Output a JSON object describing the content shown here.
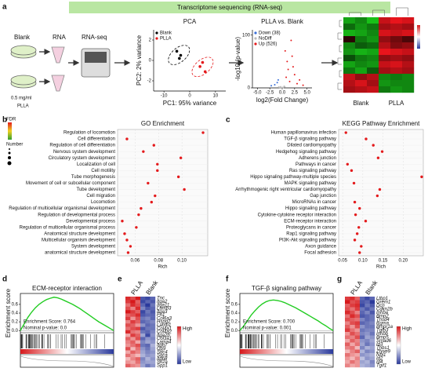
{
  "header": {
    "title": "Transcriptome sequencing (RNA-seq)"
  },
  "panel_letters": [
    "a",
    "b",
    "c",
    "d",
    "e",
    "f",
    "g"
  ],
  "workflow": {
    "labels": [
      "Blank",
      "RNA",
      "RNA-seq",
      "0.5 mg/ml",
      "PLLA"
    ]
  },
  "chart_data": [
    {
      "type": "scatter",
      "title": "PCA",
      "xlabel": "PC1: 95% variance",
      "ylabel": "PC2: 2% variance",
      "xlim": [
        -14,
        14
      ],
      "ylim": [
        -3,
        3
      ],
      "xticks": [
        -10,
        0,
        10
      ],
      "yticks": [
        -2,
        0,
        2
      ],
      "legend": "upper left",
      "ellipse": true,
      "series": [
        {
          "name": "Blank",
          "color": "#000000",
          "x": [
            -5,
            -3.5,
            -4
          ],
          "values": [
            0.9,
            0.5,
            0.2
          ]
        },
        {
          "name": "PLLA",
          "color": "#e41a1c",
          "x": [
            4,
            6,
            5
          ],
          "values": [
            -0.6,
            -1.1,
            -0.2
          ]
        }
      ]
    },
    {
      "type": "scatter",
      "title": "PLLA vs. Blank",
      "xlabel": "log2(Fold Change)",
      "ylabel": "-log10 (p-value)",
      "xlim": [
        -6,
        6
      ],
      "ylim": [
        0,
        110
      ],
      "xticks": [
        {
          "value": -5,
          "label": "-5.0"
        },
        {
          "value": -2.5,
          "label": "-2.5"
        },
        {
          "value": 0,
          "label": "0.0"
        },
        {
          "value": 2.5,
          "label": "2.5"
        },
        {
          "value": 5,
          "label": "5.0"
        }
      ],
      "yticks": [
        0,
        100
      ],
      "legend": "upper left",
      "series": [
        {
          "name": "Down (38)",
          "color": "#3a6fd8",
          "x": [
            -1.0,
            -1.5,
            -2.2,
            -0.8
          ],
          "values": [
            10,
            6,
            4,
            15
          ]
        },
        {
          "name": "NoDiff",
          "color": "#bbbbbb",
          "x": [
            -0.5,
            -0.3,
            0.2,
            0.4,
            -0.7,
            0.1,
            0.5,
            -0.2
          ],
          "values": [
            1,
            2,
            0.5,
            3,
            1.5,
            0.8,
            2,
            0.3
          ]
        },
        {
          "name": "Up (526)",
          "color": "#e41a1c",
          "x": [
            0.8,
            1.2,
            1.5,
            2.0,
            2.5,
            3.0,
            1.0,
            1.8,
            3.5,
            4.2,
            0.6,
            2.2
          ],
          "values": [
            20,
            35,
            12,
            60,
            25,
            8,
            50,
            90,
            15,
            5,
            70,
            40
          ]
        }
      ]
    },
    {
      "type": "heatmap",
      "groups": [
        "Blank",
        "PLLA"
      ],
      "group_label_position": "bottom",
      "dendrogram": true,
      "colors": [
        "#18c018",
        "#000000",
        "#e8141c"
      ],
      "values": [
        [
          -1.2,
          -1.0,
          -1.4,
          1.1,
          1.3,
          1.2
        ],
        [
          -0.8,
          -1.1,
          -0.9,
          0.9,
          1.0,
          0.9
        ],
        [
          -1.3,
          -1.2,
          -1.0,
          1.2,
          1.1,
          1.2
        ],
        [
          0.2,
          -0.9,
          -1.1,
          0.8,
          0.6,
          0.4
        ],
        [
          -1.0,
          -0.7,
          -0.8,
          1.0,
          0.7,
          0.8
        ],
        [
          -1.1,
          -1.3,
          -1.2,
          1.3,
          1.2,
          1.1
        ],
        [
          -0.6,
          -0.9,
          -1.0,
          0.8,
          0.9,
          0.8
        ],
        [
          -1.2,
          -1.0,
          -1.1,
          1.1,
          1.2,
          1.0
        ],
        [
          -0.9,
          -1.2,
          -0.7,
          0.9,
          1.0,
          0.9
        ],
        [
          1.1,
          0.8,
          1.0,
          -1.0,
          -0.9,
          -1.0
        ],
        [
          1.0,
          1.2,
          0.9,
          -1.1,
          -1.0,
          -1.0
        ],
        [
          0.9,
          1.0,
          1.1,
          -0.9,
          -1.1,
          -1.0
        ]
      ]
    },
    {
      "type": "dot",
      "title": "GO Enrichment",
      "xlabel": "Rich",
      "color": "#e41a1c",
      "legend_titles": [
        "FDR",
        "Number"
      ],
      "xlim": [
        0.045,
        0.122
      ],
      "xticks": [
        0.06,
        0.08,
        {
          "value": 0.1,
          "label": "0.10"
        }
      ],
      "categories": [
        "Regulation of locomotion",
        "Cell differentiation",
        "Regulation of cell differentiation",
        "Nervous system development",
        "Circulatory system development",
        "Localization of cell",
        "Cell motility",
        "Tube morphogenesis",
        "Movement of cell or subcellular component",
        "Tube development",
        "Cell migration",
        "Locomotion",
        "Regulation of multicellular organismal development",
        "Regulation of developmental process",
        "Developmental process",
        "Regulation of multicellular organismal process",
        "Anatomical structure development",
        "Multicellular organism development",
        "System development",
        "anatomical structure development"
      ],
      "values": [
        0.118,
        0.053,
        0.076,
        0.067,
        0.099,
        0.079,
        0.079,
        0.097,
        0.071,
        0.102,
        0.077,
        0.074,
        0.065,
        0.063,
        0.049,
        0.061,
        0.051,
        0.053,
        0.056,
        0.054
      ]
    },
    {
      "type": "dot",
      "title": "KEGG Pathway Enrichment",
      "xlabel": "Rich",
      "color": "#e41a1c",
      "highlight": [
        1,
        13,
        14
      ],
      "highlight_color": "#e41a1c",
      "xlim": [
        0.04,
        0.25
      ],
      "xticks": [
        0.05,
        {
          "value": 0.1,
          "label": "0.10"
        },
        0.15,
        {
          "value": 0.2,
          "label": "0.20"
        }
      ],
      "categories": [
        "Human papillomavirus infection",
        "TGF-β signaling pathway",
        "Dilated cardiomyopathy",
        "Hedgehog signaling pathway",
        "Adherens junction",
        "Pathways in cancer",
        "Ras signaling pathway",
        "Hippo signaling pathway-multiple species",
        "MAPK signaling pathway",
        "Arrhythmogenic right ventricular cardiomyopathy",
        "Gap junction",
        "MicroRNAs in cancer",
        "Hippo signaling pathway",
        "Cytokine-cytokine receptor interaction",
        "ECM-receptor interaction",
        "Proteoglycans in cancer",
        "Rap1 signaling pathway",
        "PI3K-Akt signaling pathway",
        "Axon guidance",
        "Focal adhesion"
      ],
      "values": [
        0.058,
        0.108,
        0.126,
        0.148,
        0.138,
        0.062,
        0.072,
        0.246,
        0.078,
        0.142,
        0.136,
        0.08,
        0.092,
        0.082,
        0.107,
        0.09,
        0.086,
        0.08,
        0.096,
        0.092
      ]
    },
    {
      "type": "line",
      "title": "ECM-receptor interaction",
      "ylabel": "Enrichment score",
      "color": "#22cc22",
      "annotations": [
        "Enrichment Score: 0.764",
        "Nominal p-value: 0.0"
      ],
      "xlim": [
        0,
        100
      ],
      "ylim": [
        -0.05,
        0.85
      ],
      "yticks": [
        {
          "value": 0,
          "label": "0.0"
        },
        {
          "value": 0.2,
          "label": "0.2"
        },
        {
          "value": 0.4,
          "label": "0.4"
        },
        {
          "value": 0.6,
          "label": "0.6"
        }
      ],
      "x": [
        0,
        4,
        8,
        12,
        16,
        20,
        24,
        28,
        32,
        36,
        40,
        44,
        48,
        52,
        56,
        60,
        64,
        68,
        72,
        76,
        80,
        84,
        88,
        92,
        96,
        100
      ],
      "values": [
        0,
        0.15,
        0.3,
        0.42,
        0.52,
        0.6,
        0.66,
        0.71,
        0.74,
        0.764,
        0.75,
        0.72,
        0.68,
        0.64,
        0.6,
        0.55,
        0.5,
        0.44,
        0.38,
        0.32,
        0.26,
        0.2,
        0.15,
        0.1,
        0.05,
        0
      ]
    },
    {
      "type": "heatmap",
      "groups": [
        "PLLA",
        "Blank"
      ],
      "group_label_position": "top",
      "legend_labels": [
        "High",
        "Low"
      ],
      "colors": [
        "#2b3a9c",
        "#ffffff",
        "#d7191c"
      ],
      "rows": [
        "Tnc",
        "Itga2",
        "Itga11",
        "Lamb3",
        "Itga3",
        "Fn1",
        "Col6a3",
        "Hspg2",
        "Lamb1",
        "Col4a1",
        "Col4a2",
        "Itga2b",
        "Col3a1",
        "Lama4",
        "Itgb7",
        "Gp9",
        "Sdc4",
        "Sgca",
        "Itgb8",
        "Sv2a",
        "Spp1"
      ],
      "values": [
        [
          1.2,
          1.0,
          1.3,
          -1.1,
          -1.2,
          -1.0
        ],
        [
          1.1,
          1.3,
          0.9,
          -1.2,
          -1.0,
          -1.1
        ],
        [
          0.8,
          1.2,
          1.0,
          -1.0,
          -1.3,
          -0.9
        ],
        [
          1.0,
          0.7,
          1.2,
          -0.8,
          -1.1,
          -1.0
        ],
        [
          1.3,
          1.1,
          0.9,
          -1.2,
          -0.9,
          -1.1
        ],
        [
          0.9,
          1.0,
          1.2,
          -1.1,
          -1.0,
          -1.0
        ],
        [
          1.1,
          0.6,
          1.0,
          -0.9,
          -0.8,
          -1.0
        ],
        [
          0.7,
          1.1,
          0.9,
          -1.0,
          -0.9,
          -0.8
        ],
        [
          1.0,
          0.9,
          0.6,
          -0.7,
          -1.0,
          -0.9
        ],
        [
          0.8,
          1.0,
          1.1,
          -1.1,
          -0.9,
          -0.9
        ],
        [
          1.2,
          0.8,
          0.7,
          -0.9,
          -1.0,
          -0.8
        ],
        [
          0.5,
          1.1,
          0.9,
          -0.6,
          -1.2,
          -0.7
        ],
        [
          0.9,
          0.6,
          1.0,
          -1.0,
          -0.7,
          -0.8
        ],
        [
          0.7,
          0.9,
          0.5,
          -0.8,
          -0.6,
          -0.7
        ],
        [
          0.6,
          0.8,
          1.0,
          -0.9,
          -1.0,
          -0.5
        ],
        [
          1.0,
          0.4,
          0.8,
          -0.7,
          -0.9,
          -0.6
        ],
        [
          0.5,
          0.9,
          0.7,
          -0.6,
          -0.8,
          -0.7
        ],
        [
          0.8,
          0.6,
          0.4,
          -0.5,
          -0.7,
          -0.6
        ],
        [
          0.4,
          0.7,
          0.9,
          -0.8,
          -0.5,
          -0.7
        ],
        [
          0.6,
          0.5,
          0.8,
          -0.7,
          -0.6,
          -0.6
        ],
        [
          0.9,
          0.7,
          0.6,
          -0.6,
          -0.9,
          -0.7
        ]
      ]
    },
    {
      "type": "line",
      "title": "TGF-β signaling pathway",
      "ylabel": "Enrichment score",
      "color": "#22cc22",
      "annotations": [
        "Enrichment Score: 0.700",
        "Nominal p-value: 0.001"
      ],
      "xlim": [
        0,
        100
      ],
      "ylim": [
        -0.05,
        0.85
      ],
      "yticks": [
        {
          "value": 0,
          "label": "0.0"
        },
        {
          "value": 0.2,
          "label": "0.2"
        },
        {
          "value": 0.4,
          "label": "0.4"
        },
        {
          "value": 0.6,
          "label": "0.6"
        }
      ],
      "x": [
        0,
        4,
        8,
        12,
        16,
        20,
        24,
        28,
        32,
        36,
        40,
        44,
        48,
        52,
        56,
        60,
        64,
        68,
        72,
        76,
        80,
        84,
        88,
        92,
        96,
        100
      ],
      "values": [
        0,
        0.1,
        0.22,
        0.35,
        0.45,
        0.54,
        0.61,
        0.66,
        0.69,
        0.7,
        0.69,
        0.67,
        0.64,
        0.6,
        0.56,
        0.52,
        0.47,
        0.42,
        0.37,
        0.32,
        0.27,
        0.22,
        0.16,
        0.11,
        0.05,
        0
      ]
    },
    {
      "type": "heatmap",
      "groups": [
        "PLLA",
        "Blank"
      ],
      "group_label_position": "top",
      "legend_labels": [
        "High",
        "Low"
      ],
      "colors": [
        "#2b3a9c",
        "#ffffff",
        "#d7191c"
      ],
      "rows": [
        "Ltbp1",
        "Grem1",
        "Dcn",
        "Cdkn2b",
        "Inhba",
        "Bmp2",
        "Thsd4",
        "Rgma",
        "Bmpr1a",
        "Tgfb3",
        "Inhbb",
        "Bmp5",
        "Smad6",
        "Id3",
        "Thbs1",
        "Zfyve9",
        "Nbl1",
        "Id2",
        "Id4",
        "Tgif1"
      ],
      "values": [
        [
          1.1,
          1.2,
          0.9,
          -1.0,
          -1.2,
          -1.0
        ],
        [
          1.3,
          1.0,
          1.1,
          -1.1,
          -1.0,
          -1.3
        ],
        [
          0.9,
          1.1,
          1.2,
          -1.2,
          -0.9,
          -1.1
        ],
        [
          1.0,
          0.8,
          1.1,
          -0.9,
          -1.1,
          -0.9
        ],
        [
          1.2,
          1.0,
          0.7,
          -1.0,
          -0.8,
          -1.1
        ],
        [
          0.8,
          1.2,
          1.0,
          -1.1,
          -1.0,
          -0.9
        ],
        [
          1.0,
          0.9,
          0.8,
          -0.8,
          -1.0,
          -0.9
        ],
        [
          0.7,
          1.0,
          1.1,
          -1.0,
          -0.9,
          -0.8
        ],
        [
          0.9,
          0.6,
          1.0,
          -0.7,
          -0.9,
          -0.9
        ],
        [
          1.1,
          0.8,
          0.6,
          -0.9,
          -0.8,
          -0.8
        ],
        [
          0.6,
          1.0,
          0.8,
          -0.8,
          -0.7,
          -0.9
        ],
        [
          0.8,
          0.7,
          1.0,
          -1.0,
          -0.6,
          -0.7
        ],
        [
          0.5,
          0.9,
          0.7,
          -0.7,
          -0.8,
          -0.6
        ],
        [
          0.9,
          0.5,
          0.8,
          -0.6,
          -0.9,
          -0.7
        ],
        [
          0.7,
          0.8,
          0.4,
          -0.8,
          -0.5,
          -0.6
        ],
        [
          0.4,
          0.7,
          0.9,
          -0.5,
          -0.8,
          -0.7
        ],
        [
          0.8,
          0.6,
          0.5,
          -0.7,
          -0.6,
          -0.5
        ],
        [
          0.6,
          0.4,
          0.7,
          -0.4,
          -0.7,
          -0.6
        ],
        [
          0.5,
          0.8,
          0.6,
          -0.6,
          -0.5,
          -0.8
        ],
        [
          0.7,
          0.5,
          0.6,
          -0.5,
          -0.6,
          -0.7
        ]
      ]
    }
  ]
}
